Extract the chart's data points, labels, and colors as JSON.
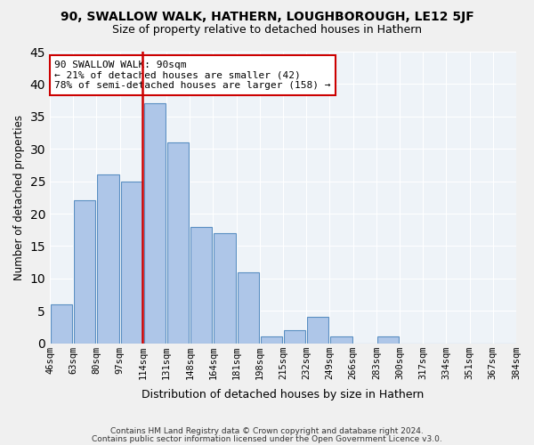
{
  "title": "90, SWALLOW WALK, HATHERN, LOUGHBOROUGH, LE12 5JF",
  "subtitle": "Size of property relative to detached houses in Hathern",
  "xlabel": "Distribution of detached houses by size in Hathern",
  "ylabel": "Number of detached properties",
  "bin_labels": [
    "46sqm",
    "63sqm",
    "80sqm",
    "97sqm",
    "114sqm",
    "131sqm",
    "148sqm",
    "164sqm",
    "181sqm",
    "198sqm",
    "215sqm",
    "232sqm",
    "249sqm",
    "266sqm",
    "283sqm",
    "300sqm",
    "317sqm",
    "334sqm",
    "351sqm",
    "367sqm",
    "384sqm"
  ],
  "values": [
    6,
    22,
    26,
    25,
    37,
    31,
    18,
    17,
    11,
    1,
    2,
    4,
    1,
    0,
    1,
    0,
    0,
    0,
    0,
    0
  ],
  "bar_color": "#aec6e8",
  "bar_edge_color": "#5a8fc2",
  "vline_x_index": 3,
  "vline_color": "#cc0000",
  "annotation_text": "90 SWALLOW WALK: 90sqm\n← 21% of detached houses are smaller (42)\n78% of semi-detached houses are larger (158) →",
  "annotation_box_color": "#ffffff",
  "annotation_box_edge_color": "#cc0000",
  "background_color": "#eef3f8",
  "grid_color": "#ffffff",
  "ylim": [
    0,
    45
  ],
  "yticks": [
    0,
    5,
    10,
    15,
    20,
    25,
    30,
    35,
    40,
    45
  ],
  "footer1": "Contains HM Land Registry data © Crown copyright and database right 2024.",
  "footer2": "Contains public sector information licensed under the Open Government Licence v3.0."
}
